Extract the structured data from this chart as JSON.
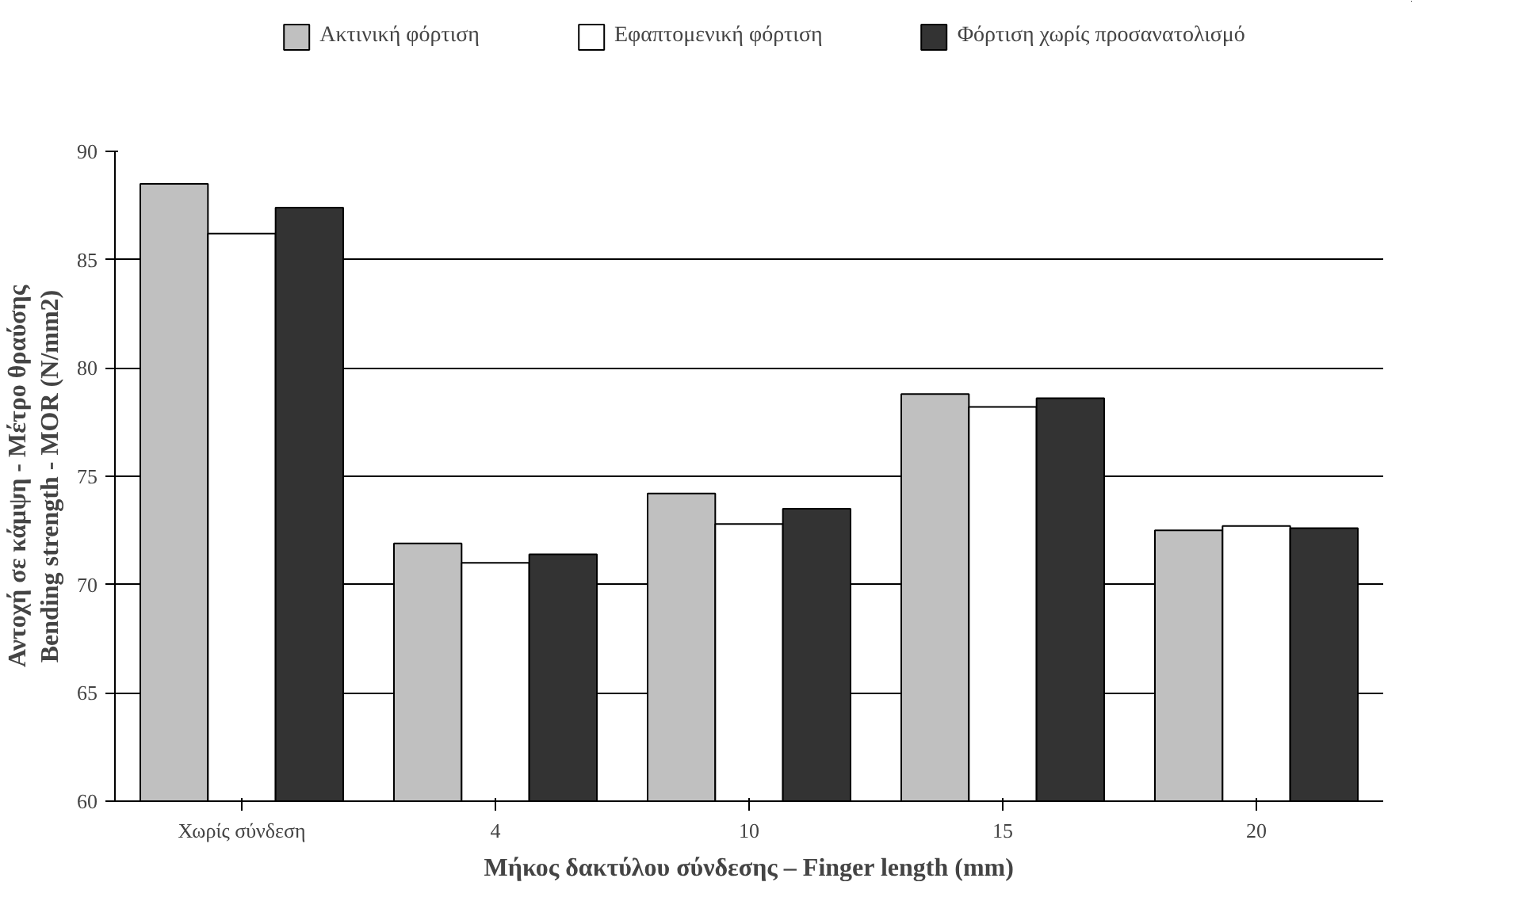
{
  "chart_data": {
    "type": "bar",
    "xlabel": "Μήκος δακτύλου σύνδεσης – Finger length (mm)",
    "ylabel": "Αντοχή σε κάμψη - Μέτρο θραύσης\nBending strength - MOR (N/mm2)",
    "categories": [
      "Χωρίς σύνδεση",
      "4",
      "10",
      "15",
      "20"
    ],
    "series": [
      {
        "name": "Ακτινική φόρτιση",
        "color": "#c0c0c0",
        "values": [
          88.5,
          71.9,
          74.2,
          78.8,
          72.5
        ]
      },
      {
        "name": "Εφαπτομενική φόρτιση",
        "color": "#ffffff",
        "values": [
          86.2,
          71.0,
          72.8,
          78.2,
          72.7
        ]
      },
      {
        "name": "Φόρτιση χωρίς προσανατολισμό",
        "color": "#333333",
        "values": [
          87.4,
          71.4,
          73.5,
          78.6,
          72.6
        ]
      }
    ],
    "ylim": [
      60,
      90
    ],
    "yticks": [
      60,
      65,
      70,
      75,
      80,
      85,
      90
    ],
    "grid": "y",
    "legend": "top"
  }
}
